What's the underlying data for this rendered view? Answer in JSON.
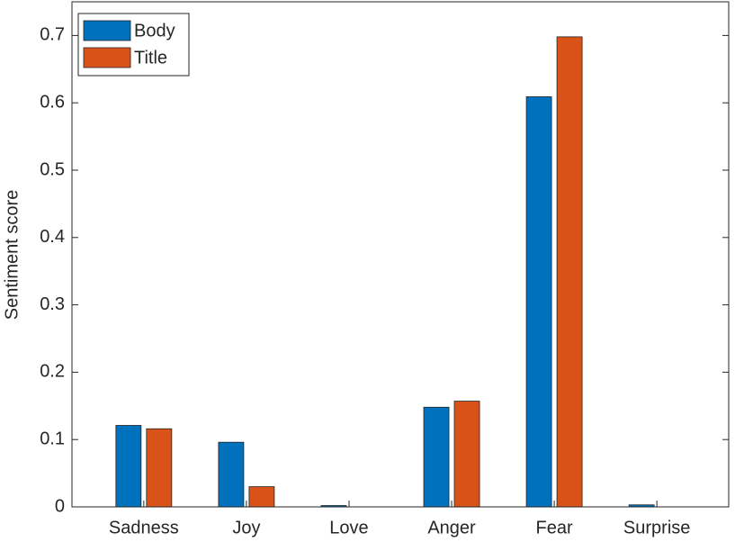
{
  "chart_data": {
    "type": "bar",
    "ylabel": "Sentiment score",
    "categories": [
      "Sadness",
      "Joy",
      "Love",
      "Anger",
      "Fear",
      "Surprise"
    ],
    "series": [
      {
        "name": "Body",
        "color": "#0072BD",
        "values": [
          0.121,
          0.096,
          0.002,
          0.148,
          0.609,
          0.003
        ]
      },
      {
        "name": "Title",
        "color": "#D95319",
        "values": [
          0.116,
          0.03,
          0,
          0.157,
          0.698,
          0
        ]
      }
    ],
    "ylim": [
      0,
      0.75
    ],
    "yticks": [
      0,
      0.1,
      0.2,
      0.3,
      0.4,
      0.5,
      0.6,
      0.7
    ],
    "grid": false,
    "legend": "upper left"
  }
}
